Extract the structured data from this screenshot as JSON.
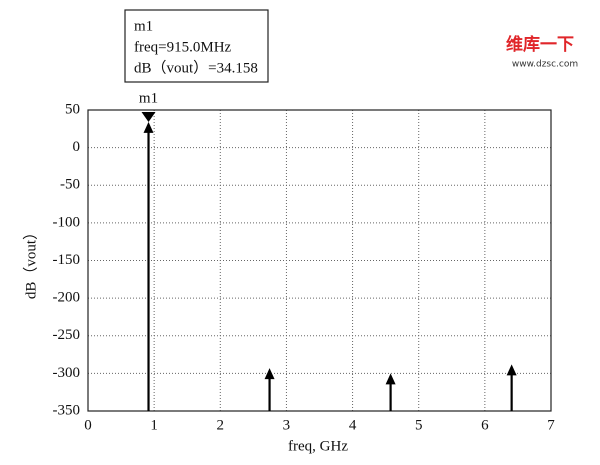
{
  "chart_data": {
    "type": "stem",
    "annotation": [
      "m1",
      "freq=915.0MHz",
      "dB（vout）=34.158"
    ],
    "marker_label": "m1",
    "xlabel": "freq, GHz",
    "ylabel": "dB（vout）",
    "x": [
      0.915,
      2.745,
      4.575,
      6.405
    ],
    "values": [
      34.158,
      -293,
      -300,
      -288
    ],
    "color": "#000000",
    "xlim": [
      0,
      7
    ],
    "xticks": [
      0,
      1,
      2,
      3,
      4,
      5,
      6,
      7
    ],
    "ylim": [
      -350,
      50
    ],
    "yticks": [
      50,
      0,
      -50,
      -100,
      -150,
      -200,
      -250,
      -300,
      -350
    ],
    "grid": true
  },
  "watermark": {
    "title": "维库一下",
    "url": "www.dzsc.com"
  }
}
